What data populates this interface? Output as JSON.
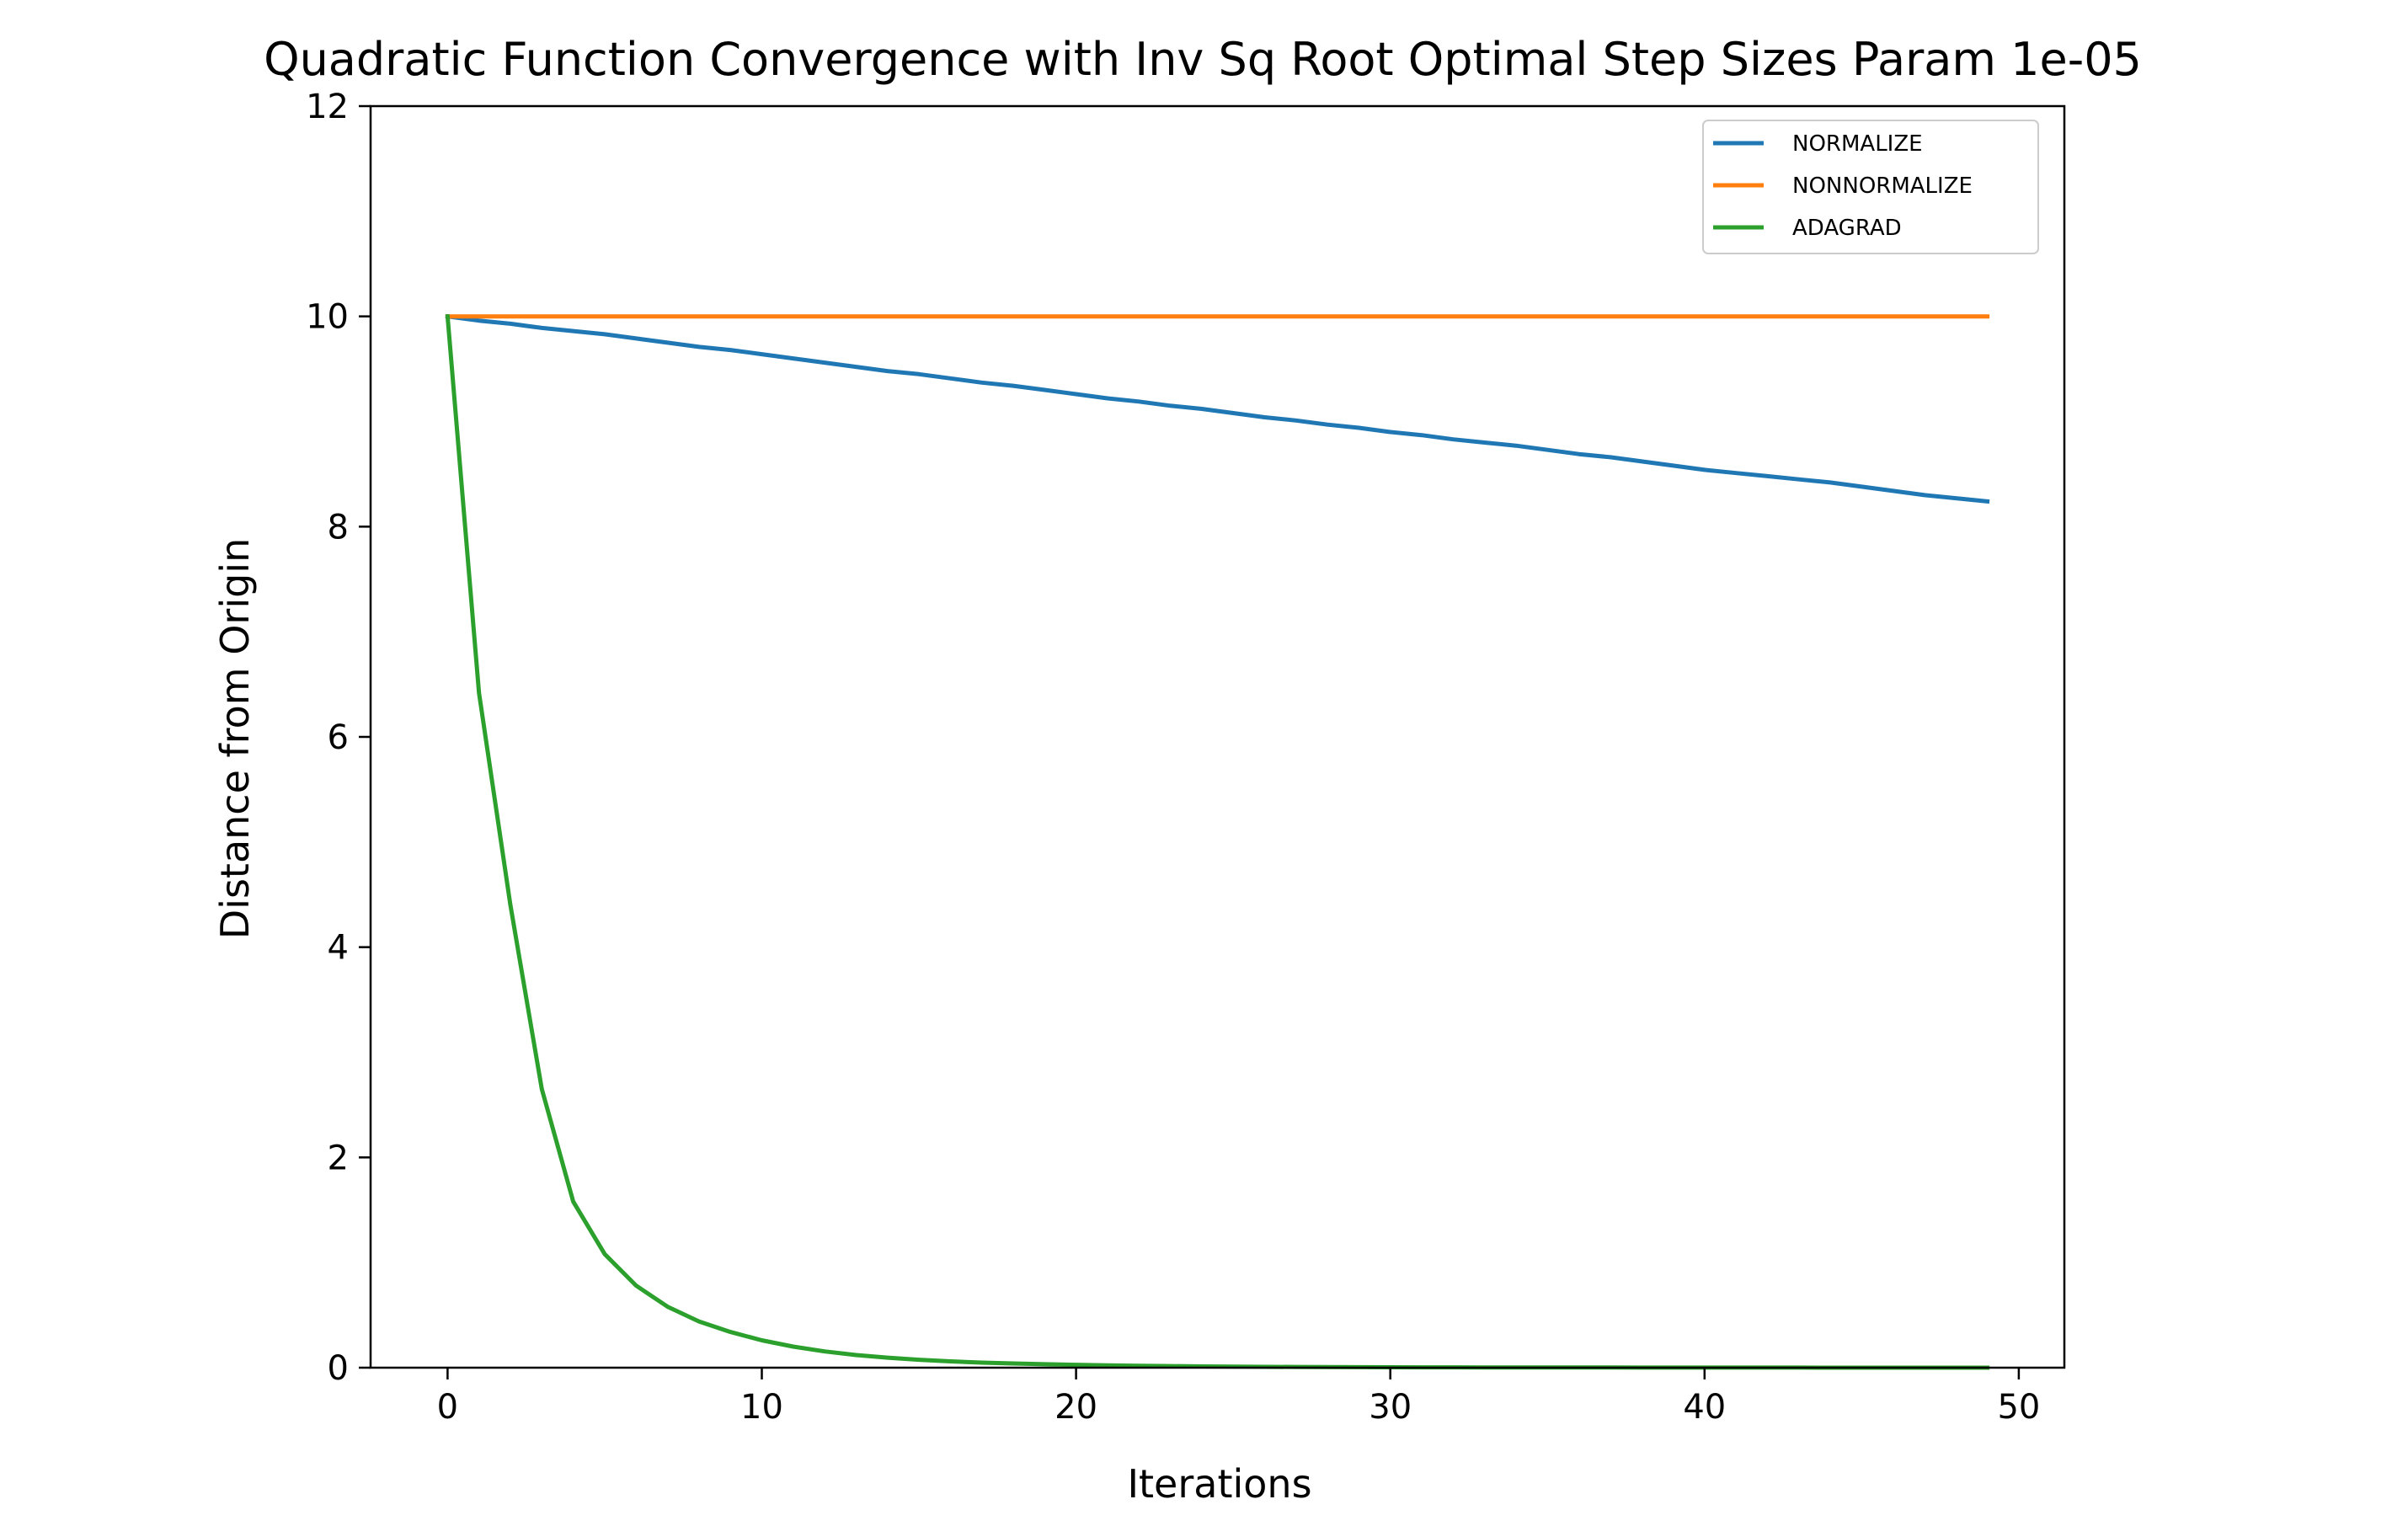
{
  "chart_data": {
    "type": "line",
    "title": "Quadratic Function Convergence with Inv Sq Root Optimal Step Sizes Param 1e-05",
    "xlabel": "Iterations",
    "ylabel": "Distance from Origin",
    "xlim": [
      -2.45,
      51.45
    ],
    "ylim": [
      0,
      12
    ],
    "xticks": [
      0,
      10,
      20,
      30,
      40,
      50
    ],
    "yticks": [
      0,
      2,
      4,
      6,
      8,
      10,
      12
    ],
    "xtick_labels": [
      "0",
      "10",
      "20",
      "30",
      "40",
      "50"
    ],
    "ytick_labels": [
      "0",
      "2",
      "4",
      "6",
      "8",
      "10",
      "12"
    ],
    "grid": false,
    "legend_position": "top-right",
    "x": [
      0,
      1,
      2,
      3,
      4,
      5,
      6,
      7,
      8,
      9,
      10,
      11,
      12,
      13,
      14,
      15,
      16,
      17,
      18,
      19,
      20,
      21,
      22,
      23,
      24,
      25,
      26,
      27,
      28,
      29,
      30,
      31,
      32,
      33,
      34,
      35,
      36,
      37,
      38,
      39,
      40,
      41,
      42,
      43,
      44,
      45,
      46,
      47,
      48,
      49
    ],
    "series": [
      {
        "name": "NORMALIZE",
        "color": "#1f77b4",
        "values": [
          10.0,
          9.96,
          9.93,
          9.89,
          9.86,
          9.83,
          9.79,
          9.75,
          9.71,
          9.68,
          9.64,
          9.6,
          9.56,
          9.52,
          9.48,
          9.45,
          9.41,
          9.37,
          9.34,
          9.3,
          9.26,
          9.22,
          9.19,
          9.15,
          9.12,
          9.08,
          9.04,
          9.01,
          8.97,
          8.94,
          8.9,
          8.87,
          8.83,
          8.8,
          8.77,
          8.73,
          8.69,
          8.66,
          8.62,
          8.58,
          8.54,
          8.51,
          8.48,
          8.45,
          8.42,
          8.38,
          8.34,
          8.3,
          8.27,
          8.24
        ]
      },
      {
        "name": "NONNORMALIZE",
        "color": "#ff7f0e",
        "values": [
          10.0,
          10.0,
          10.0,
          10.0,
          10.0,
          10.0,
          10.0,
          10.0,
          10.0,
          10.0,
          10.0,
          10.0,
          10.0,
          10.0,
          10.0,
          10.0,
          10.0,
          10.0,
          10.0,
          10.0,
          10.0,
          10.0,
          10.0,
          10.0,
          10.0,
          10.0,
          10.0,
          10.0,
          10.0,
          10.0,
          10.0,
          10.0,
          10.0,
          10.0,
          10.0,
          10.0,
          10.0,
          10.0,
          10.0,
          10.0,
          10.0,
          10.0,
          10.0,
          10.0,
          10.0,
          10.0,
          10.0,
          10.0,
          10.0,
          10.0
        ]
      },
      {
        "name": "ADAGRAD",
        "color": "#2ca02c",
        "values": [
          10.0,
          6.42,
          4.4,
          2.65,
          1.58,
          1.08,
          0.78,
          0.58,
          0.44,
          0.34,
          0.26,
          0.2,
          0.155,
          0.12,
          0.095,
          0.075,
          0.06,
          0.048,
          0.04,
          0.033,
          0.027,
          0.022,
          0.018,
          0.015,
          0.012,
          0.01,
          0.008,
          0.007,
          0.006,
          0.005,
          0.004,
          0.0035,
          0.003,
          0.0025,
          0.002,
          0.0018,
          0.0015,
          0.0013,
          0.0011,
          0.001,
          0.0008,
          0.0007,
          0.0006,
          0.0005,
          0.0004,
          0.0004,
          0.0003,
          0.0003,
          0.0002,
          0.0002
        ]
      }
    ]
  }
}
